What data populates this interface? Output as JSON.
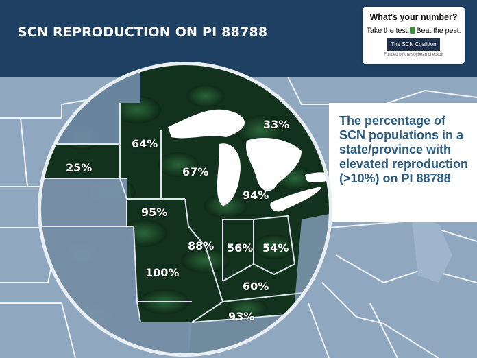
{
  "header": {
    "title": "SCN REPRODUCTION ON PI 88788"
  },
  "logo": {
    "question": "What's your number?",
    "tagline_left": "Take the test.",
    "tagline_right": "Beat the pest.",
    "coalition": "The SCN Coalition",
    "funded": "Funded by the soybean checkoff"
  },
  "info_box": {
    "text": "The percentage of SCN populations in a state/province with elevated reproduction (>10%) on PI 88788"
  },
  "regions": [
    {
      "name": "Ontario",
      "value": "33%"
    },
    {
      "name": "Minnesota",
      "value": "64%"
    },
    {
      "name": "South Dakota",
      "value": "25%"
    },
    {
      "name": "Wisconsin",
      "value": "67%"
    },
    {
      "name": "Michigan",
      "value": "94%"
    },
    {
      "name": "Iowa",
      "value": "95%"
    },
    {
      "name": "Illinois",
      "value": "88%"
    },
    {
      "name": "Indiana",
      "value": "56%"
    },
    {
      "name": "Ohio",
      "value": "54%"
    },
    {
      "name": "Missouri",
      "value": "100%"
    },
    {
      "name": "Kentucky",
      "value": "60%"
    },
    {
      "name": "Tennessee",
      "value": "93%"
    }
  ],
  "colors": {
    "header": "#1d4063",
    "info_text": "#2a5c82",
    "map_fill": "#163a22",
    "background_map": "#8fa8c0"
  }
}
